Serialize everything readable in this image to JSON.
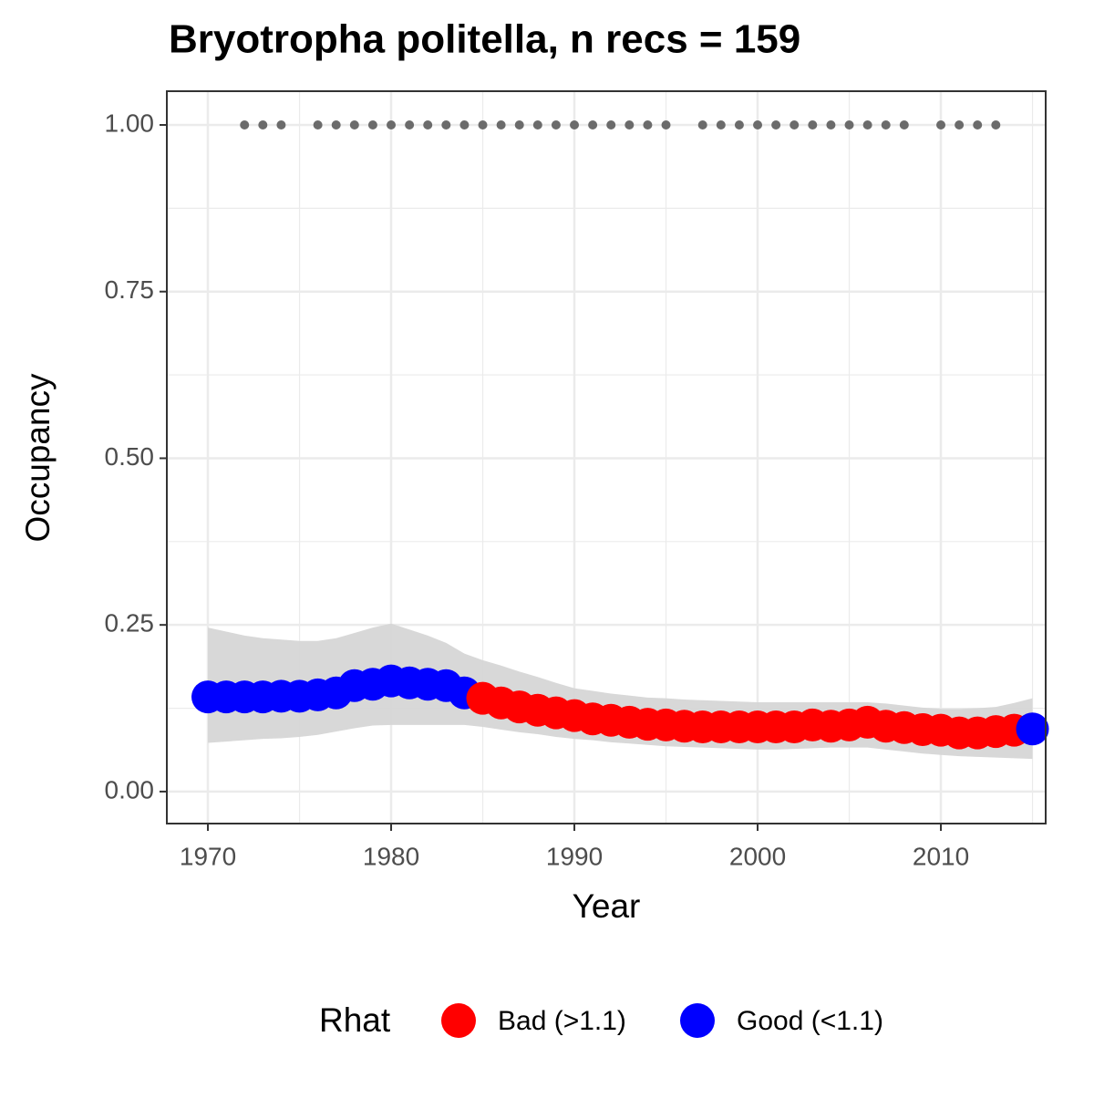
{
  "chart_data": {
    "type": "scatter",
    "title": "Bryotropha politella, n recs = 159",
    "x_label": "Year",
    "y_label": "Occupancy",
    "x": [
      1970,
      1971,
      1972,
      1973,
      1974,
      1975,
      1976,
      1977,
      1978,
      1979,
      1980,
      1981,
      1982,
      1983,
      1984,
      1985,
      1986,
      1987,
      1988,
      1989,
      1990,
      1991,
      1992,
      1993,
      1994,
      1995,
      1996,
      1997,
      1998,
      1999,
      2000,
      2001,
      2002,
      2003,
      2004,
      2005,
      2006,
      2007,
      2008,
      2009,
      2010,
      2011,
      2012,
      2013,
      2014,
      2015
    ],
    "values": [
      0.142,
      0.142,
      0.142,
      0.142,
      0.143,
      0.143,
      0.145,
      0.148,
      0.159,
      0.161,
      0.166,
      0.163,
      0.161,
      0.159,
      0.148,
      0.14,
      0.133,
      0.127,
      0.122,
      0.118,
      0.114,
      0.109,
      0.107,
      0.104,
      0.101,
      0.1,
      0.098,
      0.097,
      0.097,
      0.097,
      0.097,
      0.097,
      0.097,
      0.1,
      0.098,
      0.1,
      0.104,
      0.098,
      0.096,
      0.093,
      0.092,
      0.088,
      0.088,
      0.09,
      0.092,
      0.094
    ],
    "colors": [
      "#0000ff",
      "#0000ff",
      "#0000ff",
      "#0000ff",
      "#0000ff",
      "#0000ff",
      "#0000ff",
      "#0000ff",
      "#0000ff",
      "#0000ff",
      "#0000ff",
      "#0000ff",
      "#0000ff",
      "#0000ff",
      "#0000ff",
      "#ff0000",
      "#ff0000",
      "#ff0000",
      "#ff0000",
      "#ff0000",
      "#ff0000",
      "#ff0000",
      "#ff0000",
      "#ff0000",
      "#ff0000",
      "#ff0000",
      "#ff0000",
      "#ff0000",
      "#ff0000",
      "#ff0000",
      "#ff0000",
      "#ff0000",
      "#ff0000",
      "#ff0000",
      "#ff0000",
      "#ff0000",
      "#ff0000",
      "#ff0000",
      "#ff0000",
      "#ff0000",
      "#ff0000",
      "#ff0000",
      "#ff0000",
      "#ff0000",
      "#ff0000",
      "#0000ff"
    ],
    "ribbon": {
      "color": "#d6d6d6",
      "upper": [
        0.246,
        0.24,
        0.234,
        0.23,
        0.228,
        0.226,
        0.226,
        0.23,
        0.238,
        0.246,
        0.252,
        0.243,
        0.234,
        0.223,
        0.207,
        0.197,
        0.189,
        0.18,
        0.172,
        0.163,
        0.155,
        0.151,
        0.147,
        0.144,
        0.141,
        0.14,
        0.138,
        0.137,
        0.136,
        0.135,
        0.134,
        0.134,
        0.134,
        0.134,
        0.134,
        0.134,
        0.134,
        0.132,
        0.129,
        0.126,
        0.124,
        0.124,
        0.125,
        0.127,
        0.133,
        0.14
      ],
      "lower": [
        0.073,
        0.075,
        0.077,
        0.079,
        0.08,
        0.082,
        0.085,
        0.09,
        0.095,
        0.099,
        0.1,
        0.1,
        0.1,
        0.1,
        0.1,
        0.097,
        0.093,
        0.089,
        0.086,
        0.082,
        0.079,
        0.077,
        0.074,
        0.072,
        0.07,
        0.068,
        0.067,
        0.066,
        0.065,
        0.064,
        0.063,
        0.063,
        0.064,
        0.065,
        0.066,
        0.066,
        0.066,
        0.063,
        0.06,
        0.057,
        0.055,
        0.053,
        0.052,
        0.051,
        0.05,
        0.049
      ]
    },
    "records": {
      "color": "#6b6b6b",
      "x": [
        1972,
        1973,
        1974,
        1976,
        1977,
        1978,
        1979,
        1980,
        1981,
        1982,
        1983,
        1984,
        1985,
        1986,
        1987,
        1988,
        1989,
        1990,
        1991,
        1992,
        1993,
        1994,
        1995,
        1997,
        1998,
        1999,
        2000,
        2001,
        2002,
        2003,
        2004,
        2005,
        2006,
        2007,
        2008,
        2010,
        2011,
        2012,
        2013
      ],
      "values": [
        1,
        1,
        1,
        1,
        1,
        1,
        1,
        1,
        1,
        1,
        1,
        1,
        1,
        1,
        1,
        1,
        1,
        1,
        1,
        1,
        1,
        1,
        1,
        1,
        1,
        1,
        1,
        1,
        1,
        1,
        1,
        1,
        1,
        1,
        1,
        1,
        1,
        1,
        1
      ]
    },
    "xlim": [
      1967.76,
      2015.72
    ],
    "ylim": [
      -0.048,
      1.0506
    ],
    "xticks": [
      1970,
      1980,
      1990,
      2000,
      2010
    ],
    "yticks": [
      {
        "value": 0,
        "label": "0.00"
      },
      {
        "value": 0.25,
        "label": "0.25"
      },
      {
        "value": 0.5,
        "label": "0.50"
      },
      {
        "value": 0.75,
        "label": "0.75"
      },
      {
        "value": 1,
        "label": "1.00"
      }
    ],
    "x_minor_ticks": [
      1975,
      1985,
      1995,
      2005,
      2015
    ],
    "y_minor_ticks": [
      0.125,
      0.375,
      0.625,
      0.875
    ],
    "grid": true,
    "legend": {
      "title": "Rhat",
      "position": "bottom",
      "entries": [
        {
          "name": "Bad (>1.1)",
          "color": "#ff0000"
        },
        {
          "name": "Good (<1.1)",
          "color": "#0000ff"
        }
      ]
    }
  }
}
